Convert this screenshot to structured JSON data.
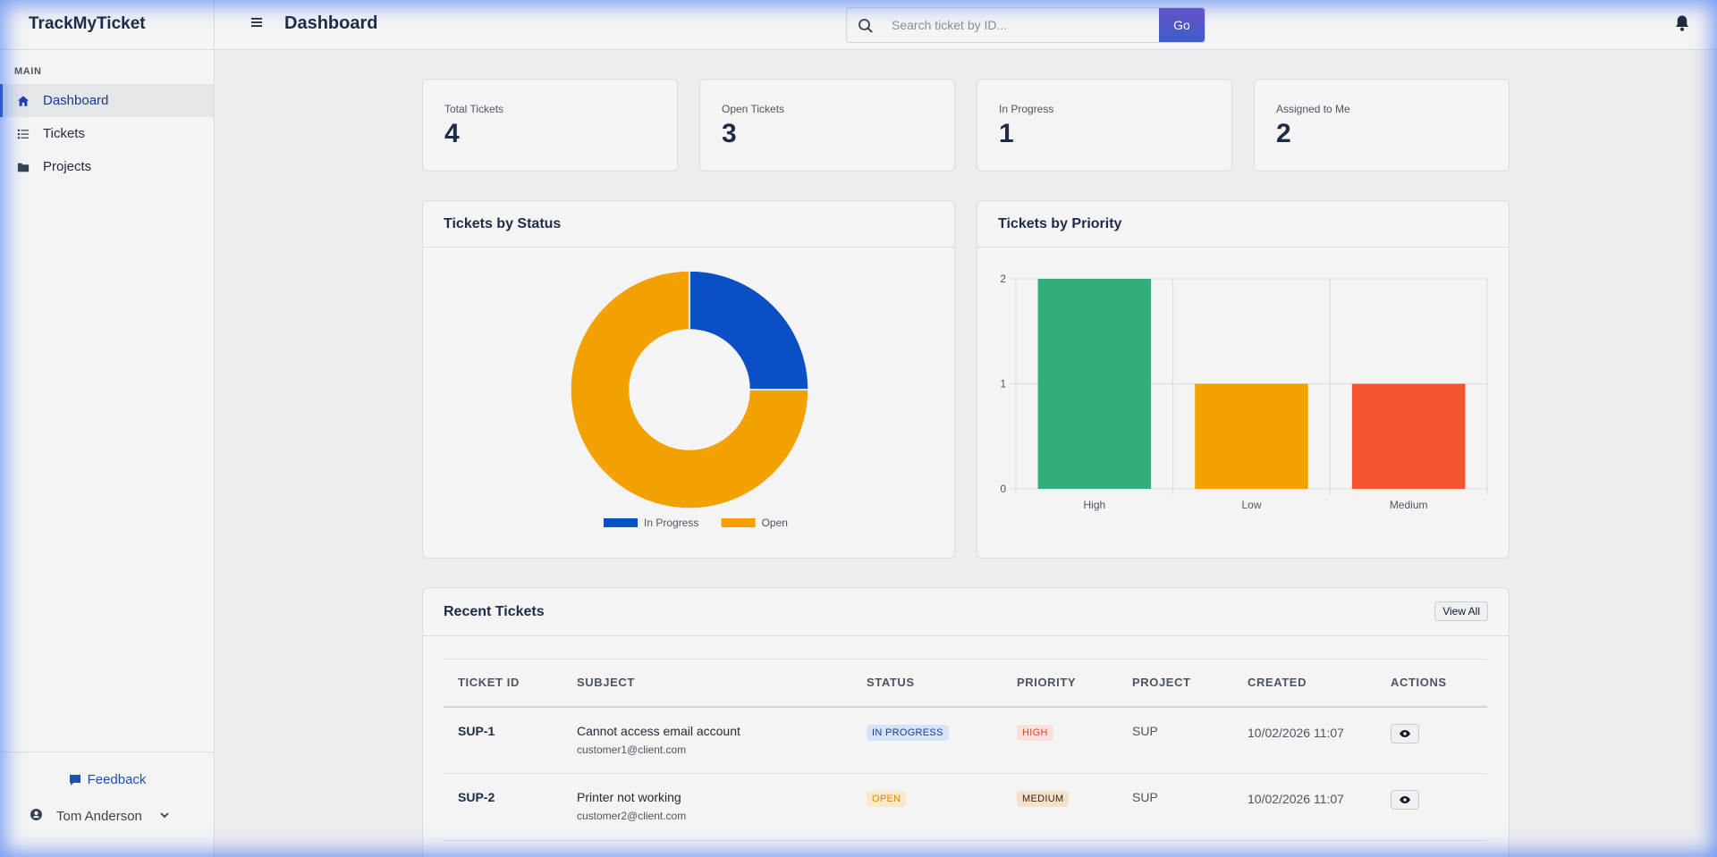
{
  "app": {
    "name": "TrackMyTicket"
  },
  "sidebar": {
    "section_label": "MAIN",
    "items": [
      {
        "label": "Dashboard",
        "icon": "home-icon",
        "active": true
      },
      {
        "label": "Tickets",
        "icon": "list-icon",
        "active": false
      },
      {
        "label": "Projects",
        "icon": "folder-icon",
        "active": false
      }
    ],
    "feedback_label": "Feedback",
    "user_name": "Tom Anderson"
  },
  "header": {
    "title": "Dashboard",
    "search_placeholder": "Search ticket by ID...",
    "search_button": "Go"
  },
  "stats": [
    {
      "label": "Total Tickets",
      "value": "4"
    },
    {
      "label": "Open Tickets",
      "value": "3"
    },
    {
      "label": "In Progress",
      "value": "1"
    },
    {
      "label": "Assigned to Me",
      "value": "2"
    }
  ],
  "charts": {
    "status_title": "Tickets by Status",
    "priority_title": "Tickets by Priority"
  },
  "chart_data": [
    {
      "type": "pie",
      "title": "Tickets by Status",
      "categories": [
        "In Progress",
        "Open"
      ],
      "values": [
        1,
        3
      ],
      "colors": [
        "#0b4fc4",
        "#f2a100"
      ],
      "legend": "bottom"
    },
    {
      "type": "bar",
      "title": "Tickets by Priority",
      "categories": [
        "High",
        "Low",
        "Medium"
      ],
      "values": [
        2,
        1,
        1
      ],
      "colors": [
        "#33ad7c",
        "#f2a100",
        "#f2552f"
      ],
      "yticks": [
        "0",
        "1",
        "2"
      ],
      "ylim": [
        0,
        2
      ],
      "grid": true
    }
  ],
  "recent": {
    "title": "Recent Tickets",
    "view_all": "View All",
    "columns": [
      "TICKET ID",
      "SUBJECT",
      "STATUS",
      "PRIORITY",
      "PROJECT",
      "CREATED",
      "ACTIONS"
    ],
    "rows": [
      {
        "id": "SUP-1",
        "subject": "Cannot access email account",
        "email": "customer1@client.com",
        "status": "IN PROGRESS",
        "priority": "HIGH",
        "project": "SUP",
        "created": "10/02/2026 11:07"
      },
      {
        "id": "SUP-2",
        "subject": "Printer not working",
        "email": "customer2@client.com",
        "status": "OPEN",
        "priority": "MEDIUM",
        "project": "SUP",
        "created": "10/02/2026 11:07"
      }
    ]
  }
}
